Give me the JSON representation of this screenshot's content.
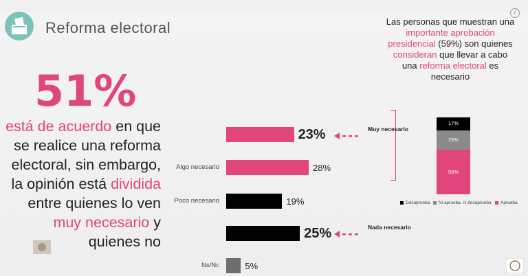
{
  "slide": {
    "title": "Reforma electoral"
  },
  "headline": {
    "percent": "51%",
    "parts": [
      {
        "text": "está de acuerdo",
        "pink": true
      },
      {
        "text": " en que se realice una reforma electoral, sin embargo, la opinión está ",
        "pink": false
      },
      {
        "text": "dividida",
        "pink": true
      },
      {
        "text": " entre quienes lo ven ",
        "pink": false
      },
      {
        "text": "muy necesario",
        "pink": true
      },
      {
        "text": " y quienes no",
        "pink": false
      }
    ]
  },
  "note": {
    "parts": [
      {
        "text": "Las personas que muestran una ",
        "pink": false
      },
      {
        "text": "importante aprobación presidencial",
        "pink": true
      },
      {
        "text": " (59%) son quienes ",
        "pink": false
      },
      {
        "text": "consideran",
        "pink": true
      },
      {
        "text": " que llevar a cabo una ",
        "pink": false
      },
      {
        "text": "reforma electoral",
        "pink": true
      },
      {
        "text": " es necesario",
        "pink": false
      }
    ]
  },
  "annotations": {
    "top": "Muy necesario",
    "bottom": "Nada necesario"
  },
  "colors": {
    "pink": "#e0457b",
    "black": "#000000",
    "gray": "#8a8a8a",
    "dark_gray": "#555555"
  },
  "chart_data": [
    {
      "type": "bar",
      "orientation": "horizontal",
      "categories": [
        "",
        "Algo necesario",
        "Poco necesario",
        "",
        "Ns/Nc"
      ],
      "values": [
        23,
        28,
        19,
        25,
        5
      ],
      "value_labels": [
        "23%",
        "28%",
        "19%",
        "25%",
        "5%"
      ],
      "colors": [
        "#e0457b",
        "#e0457b",
        "#000000",
        "#000000",
        "#6e6e6e"
      ],
      "xlim": [
        0,
        40
      ]
    },
    {
      "type": "bar",
      "stacked": true,
      "series": [
        {
          "name": "Desaprueba",
          "values": [
            17
          ],
          "label": "17%",
          "color": "#000000"
        },
        {
          "name": "Ni aprueba, ni desaprueba",
          "values": [
            25
          ],
          "label": "25%",
          "color": "#8a8a8a"
        },
        {
          "name": "Aprueba",
          "values": [
            59
          ],
          "label": "59%",
          "color": "#e0457b"
        }
      ],
      "legend_position": "bottom"
    }
  ]
}
